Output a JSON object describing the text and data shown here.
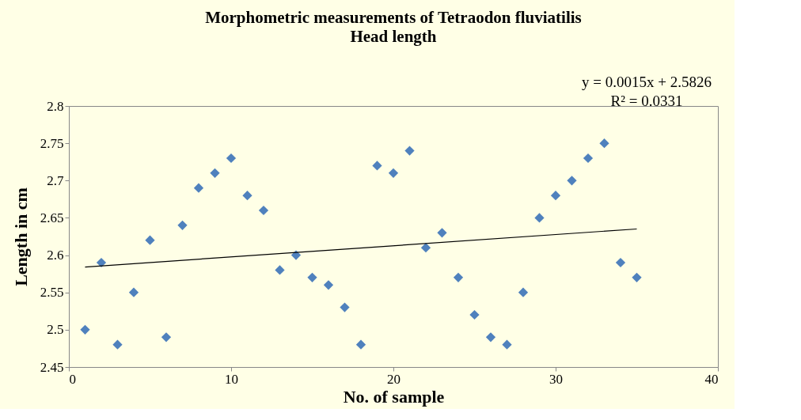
{
  "chart_data": {
    "type": "scatter",
    "title": "Morphometric measurements of  Tetraodon fluviatilis",
    "subtitle": "Head length",
    "xlabel": "No. of  sample",
    "ylabel": "Length in cm",
    "x": [
      1,
      2,
      3,
      4,
      5,
      6,
      7,
      8,
      9,
      10,
      11,
      12,
      13,
      14,
      15,
      16,
      17,
      18,
      19,
      20,
      21,
      22,
      23,
      24,
      25,
      26,
      27,
      28,
      29,
      30,
      31,
      32,
      33,
      34,
      35
    ],
    "series": [
      {
        "color": "#4f81bd",
        "marker": "diamond",
        "values": [
          2.5,
          2.59,
          2.48,
          2.55,
          2.62,
          2.49,
          2.64,
          2.69,
          2.71,
          2.73,
          2.68,
          2.66,
          2.58,
          2.6,
          2.57,
          2.56,
          2.53,
          2.48,
          2.72,
          2.71,
          2.74,
          2.61,
          2.63,
          2.57,
          2.52,
          2.49,
          2.48,
          2.55,
          2.65,
          2.68,
          2.7,
          2.73,
          2.75,
          2.59,
          2.57
        ]
      },
      {
        "type": "line",
        "color": "#000000",
        "x": [
          1,
          35
        ],
        "values": [
          2.5841,
          2.6351
        ]
      }
    ],
    "annotations": [
      "y = 0.0015x + 2.5826",
      "R² = 0.0331"
    ],
    "xlim": [
      0,
      40
    ],
    "xticks": [
      0,
      10,
      20,
      30,
      40
    ],
    "ylim": [
      2.45,
      2.8
    ],
    "yticks": [
      2.45,
      2.5,
      2.55,
      2.6,
      2.65,
      2.7,
      2.75,
      2.8
    ],
    "grid": false
  }
}
